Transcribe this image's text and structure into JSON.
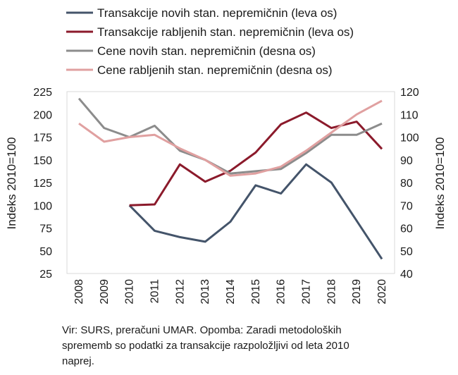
{
  "chart_data": {
    "type": "line",
    "x": [
      "2008",
      "2009",
      "2010",
      "2011",
      "2012",
      "2013",
      "2014",
      "2015",
      "2016",
      "2017",
      "2018",
      "2019",
      "2020"
    ],
    "left_axis": {
      "label": "Indeks 2010=100",
      "min": 25,
      "max": 225,
      "ticks": [
        25,
        50,
        75,
        100,
        125,
        150,
        175,
        200,
        225
      ]
    },
    "right_axis": {
      "label": "Indeks 2010=100",
      "min": 40,
      "max": 120,
      "ticks": [
        40,
        50,
        60,
        70,
        80,
        90,
        100,
        110,
        120
      ]
    },
    "grid": false,
    "legend_position": "top",
    "series": [
      {
        "name": "Transakcije novih stan. nepremičnin (leva os)",
        "axis": "left",
        "color": "#44546a",
        "values": [
          null,
          null,
          100,
          72,
          65,
          60,
          82,
          122,
          113,
          145,
          125,
          83,
          41
        ]
      },
      {
        "name": "Transakcije rabljenih stan. nepremičnin (leva os)",
        "axis": "left",
        "color": "#8b1a2b",
        "values": [
          null,
          null,
          100,
          101,
          145,
          126,
          138,
          158,
          189,
          202,
          185,
          192,
          162
        ]
      },
      {
        "name": "Cene novih stan. nepremičnin (desna os)",
        "axis": "right",
        "color": "#8c8c8c",
        "values": [
          117,
          104,
          100,
          105,
          94,
          90,
          84,
          85,
          86,
          93,
          101,
          101,
          106
        ]
      },
      {
        "name": "Cene rabljenih stan. nepremičnin (desna os)",
        "axis": "right",
        "color": "#e0a0a0",
        "values": [
          106,
          98,
          100,
          101,
          95,
          90,
          83,
          84,
          87,
          94,
          102,
          110,
          116
        ]
      }
    ]
  },
  "note": {
    "lines": [
      "Vir: SURS, preračuni UMAR. Opomba: Zaradi metodoloških",
      "sprememb so podatki za transakcije razpoložljivi od leta 2010",
      "naprej."
    ]
  }
}
